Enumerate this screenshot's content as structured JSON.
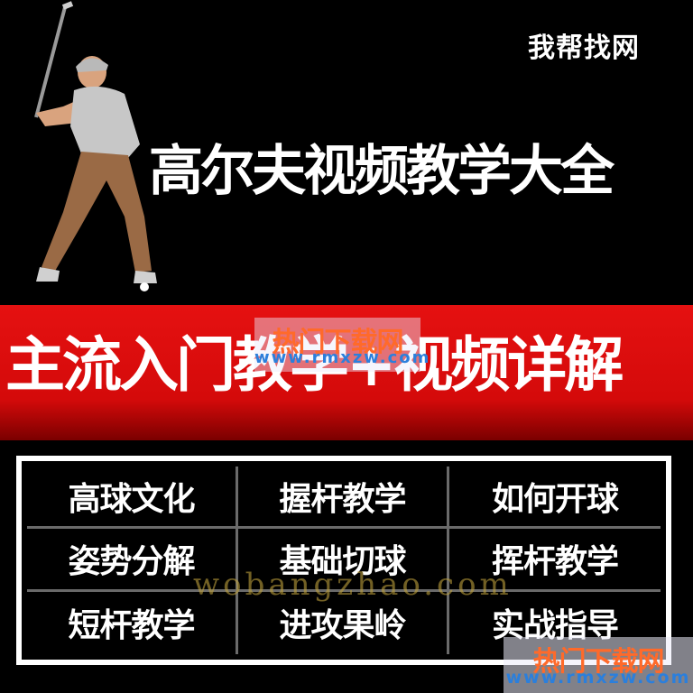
{
  "brand": "我帮找网",
  "title": "高尔夫视频教学大全",
  "subtitle": "主流入门教学+视频详解",
  "overlay_watermark": {
    "big": "热门下载网",
    "small": "www.rmxzw.com"
  },
  "grid": {
    "cells": [
      "高球文化",
      "握杆教学",
      "如何开球",
      "姿势分解",
      "基础切球",
      "挥杆教学",
      "短杆教学",
      "进攻果岭",
      "实战指导"
    ]
  },
  "text_watermark": "wobangzhao.com",
  "corner_watermark": {
    "big": "热门下载网",
    "small": "www.rmxzw.com"
  },
  "colors": {
    "background": "#000000",
    "banner_red": "#e51111",
    "text": "#ffffff",
    "grid_border": "#ffffff"
  }
}
